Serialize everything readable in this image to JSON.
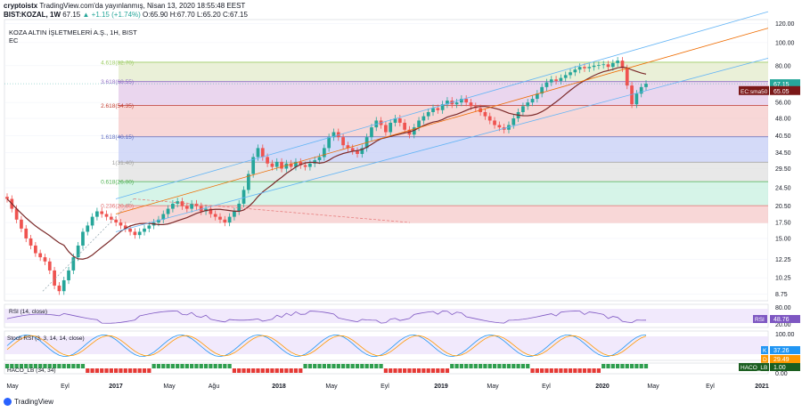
{
  "header": {
    "publisher": "cryptoistx",
    "published_text": "TradingView.com'da yayınlanmış, Nisan 13, 2020 18:55:48 EEST",
    "symbol": "BIST:KOZAL, 1W",
    "last": "67.15",
    "change": "▲ +1.15 (+1.74%)",
    "open": "O:65.90",
    "high": "H:67.70",
    "low": "L:65.20",
    "close": "C:67.15"
  },
  "instrument": {
    "name": "KOZA ALTIN İŞLETMELERİ A.Ş., 1H, BIST",
    "sub": "EC"
  },
  "colors": {
    "up": "#26a69a",
    "down": "#ef5350",
    "sma": "#7b2a2a",
    "channel": "#64b5f6",
    "mid": "#ef6c00",
    "rsi": "#7e57c2",
    "stoch_k": "#2196f3",
    "stoch_d": "#ff9800"
  },
  "chart_data": {
    "type": "candlestick",
    "price_axis_ticks": [
      120.0,
      100.0,
      80.0,
      67.15,
      65.05,
      56.0,
      48.0,
      40.5,
      34.5,
      29.5,
      24.5,
      20.5,
      17.5,
      15.0,
      12.25,
      10.25,
      8.75
    ],
    "time_axis_labels": [
      "May",
      "Eyl",
      "2017",
      "May",
      "Ağu",
      "2018",
      "May",
      "Eyl",
      "2019",
      "May",
      "Eyl",
      "2020",
      "May",
      "Eyl",
      "2021"
    ],
    "fib_levels": [
      {
        "label": "4.618(82.70)",
        "value": 82.7
      },
      {
        "label": "3.618(68.55)",
        "value": 68.55
      },
      {
        "label": "2.618(54.35)",
        "value": 54.35
      },
      {
        "label": "1.618(40.15)",
        "value": 40.15
      },
      {
        "label": "1(31.40)",
        "value": 31.4
      },
      {
        "label": "0.618(26.00)",
        "value": 26.0
      },
      {
        "label": "0.236(20.60)",
        "value": 20.6
      }
    ],
    "price_labels": [
      {
        "text": "67.15",
        "value": 67.15
      },
      {
        "text": "65.05",
        "value": 65.05
      }
    ],
    "sma_label": "EC:sma50",
    "closes": [
      22,
      20,
      18,
      16.5,
      15,
      14,
      13,
      12.5,
      12,
      11,
      9.5,
      9,
      10,
      11,
      12.5,
      14,
      16,
      17,
      18.5,
      19.5,
      19,
      18.5,
      18,
      17.5,
      17,
      16.5,
      16,
      15.5,
      16,
      16.5,
      17,
      17.5,
      18,
      19,
      20,
      21,
      21.5,
      20.5,
      20,
      21,
      20.5,
      19.5,
      20,
      19,
      18.5,
      18,
      17.5,
      18.5,
      19.5,
      21,
      24,
      28,
      33,
      36,
      33,
      31,
      30,
      31.5,
      29.5,
      31,
      30,
      31.5,
      30.5,
      30,
      31,
      32,
      33,
      36,
      40,
      42,
      40,
      37,
      36,
      35,
      34,
      36,
      40,
      44,
      47,
      45,
      42,
      46,
      48,
      46,
      43,
      41,
      44,
      47,
      49,
      51,
      53,
      52,
      55,
      57,
      55,
      56,
      58,
      56,
      54,
      53,
      51,
      49,
      47,
      45,
      44,
      43,
      45,
      48,
      51,
      54,
      56,
      58,
      61,
      65,
      68,
      70,
      69,
      71,
      73,
      75,
      77,
      79,
      78,
      79,
      80,
      80.5,
      81,
      79,
      82,
      84,
      78,
      66,
      55,
      61,
      65,
      67.15
    ],
    "sma_values_end": 65.05,
    "panels": [
      {
        "name": "RSI (14, close)",
        "label": "RSI",
        "value": "48.76",
        "ticks": [
          "80.00",
          "20.00"
        ]
      },
      {
        "name": "Stoch RSI (3, 3, 14, 14, close)",
        "label_k": "K",
        "value_k": "37.26",
        "label_d": "D",
        "value_d": "29.49",
        "ticks": [
          "100.00"
        ]
      },
      {
        "name": "HACO_LB (34, 34)",
        "label": "HACO_LB",
        "value": "1.00",
        "ticks": [
          "0.00"
        ]
      }
    ]
  },
  "footer": {
    "brand": "TradingView"
  }
}
